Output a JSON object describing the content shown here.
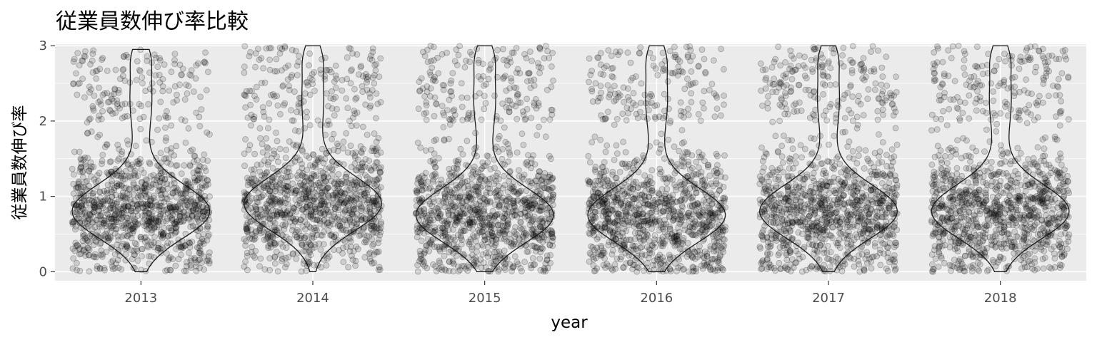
{
  "chart_data": {
    "type": "violin",
    "overlay": "jitter-scatter",
    "title": "従業員数伸び率比較",
    "xlabel": "year",
    "ylabel": "従業員数伸び率",
    "categories": [
      "2013",
      "2014",
      "2015",
      "2016",
      "2017",
      "2018"
    ],
    "ylim": [
      -0.12,
      3.02
    ],
    "yticks": [
      0,
      1,
      2,
      3
    ],
    "grid": true,
    "point_alpha": 0.15,
    "points_per_year_approx": 1200,
    "violins": [
      {
        "year": "2013",
        "y_min": 0,
        "y_max": 2.95,
        "mode": 0.8,
        "points_above_2_approx": 160
      },
      {
        "year": "2014",
        "y_min": 0,
        "y_max": 3.0,
        "mode": 0.9,
        "points_above_2_approx": 180
      },
      {
        "year": "2015",
        "y_min": 0,
        "y_max": 3.0,
        "mode": 0.75,
        "points_above_2_approx": 190
      },
      {
        "year": "2016",
        "y_min": 0,
        "y_max": 3.0,
        "mode": 0.75,
        "points_above_2_approx": 170
      },
      {
        "year": "2017",
        "y_min": 0,
        "y_max": 3.0,
        "mode": 0.8,
        "points_above_2_approx": 200
      },
      {
        "year": "2018",
        "y_min": 0,
        "y_max": 3.0,
        "mode": 0.8,
        "points_above_2_approx": 190
      }
    ],
    "colors": {
      "panel": "#ebebeb",
      "grid": "#ffffff",
      "points": "#000000",
      "violin_outline": "#1a1a1a",
      "tick_text": "#4d4d4d"
    }
  }
}
